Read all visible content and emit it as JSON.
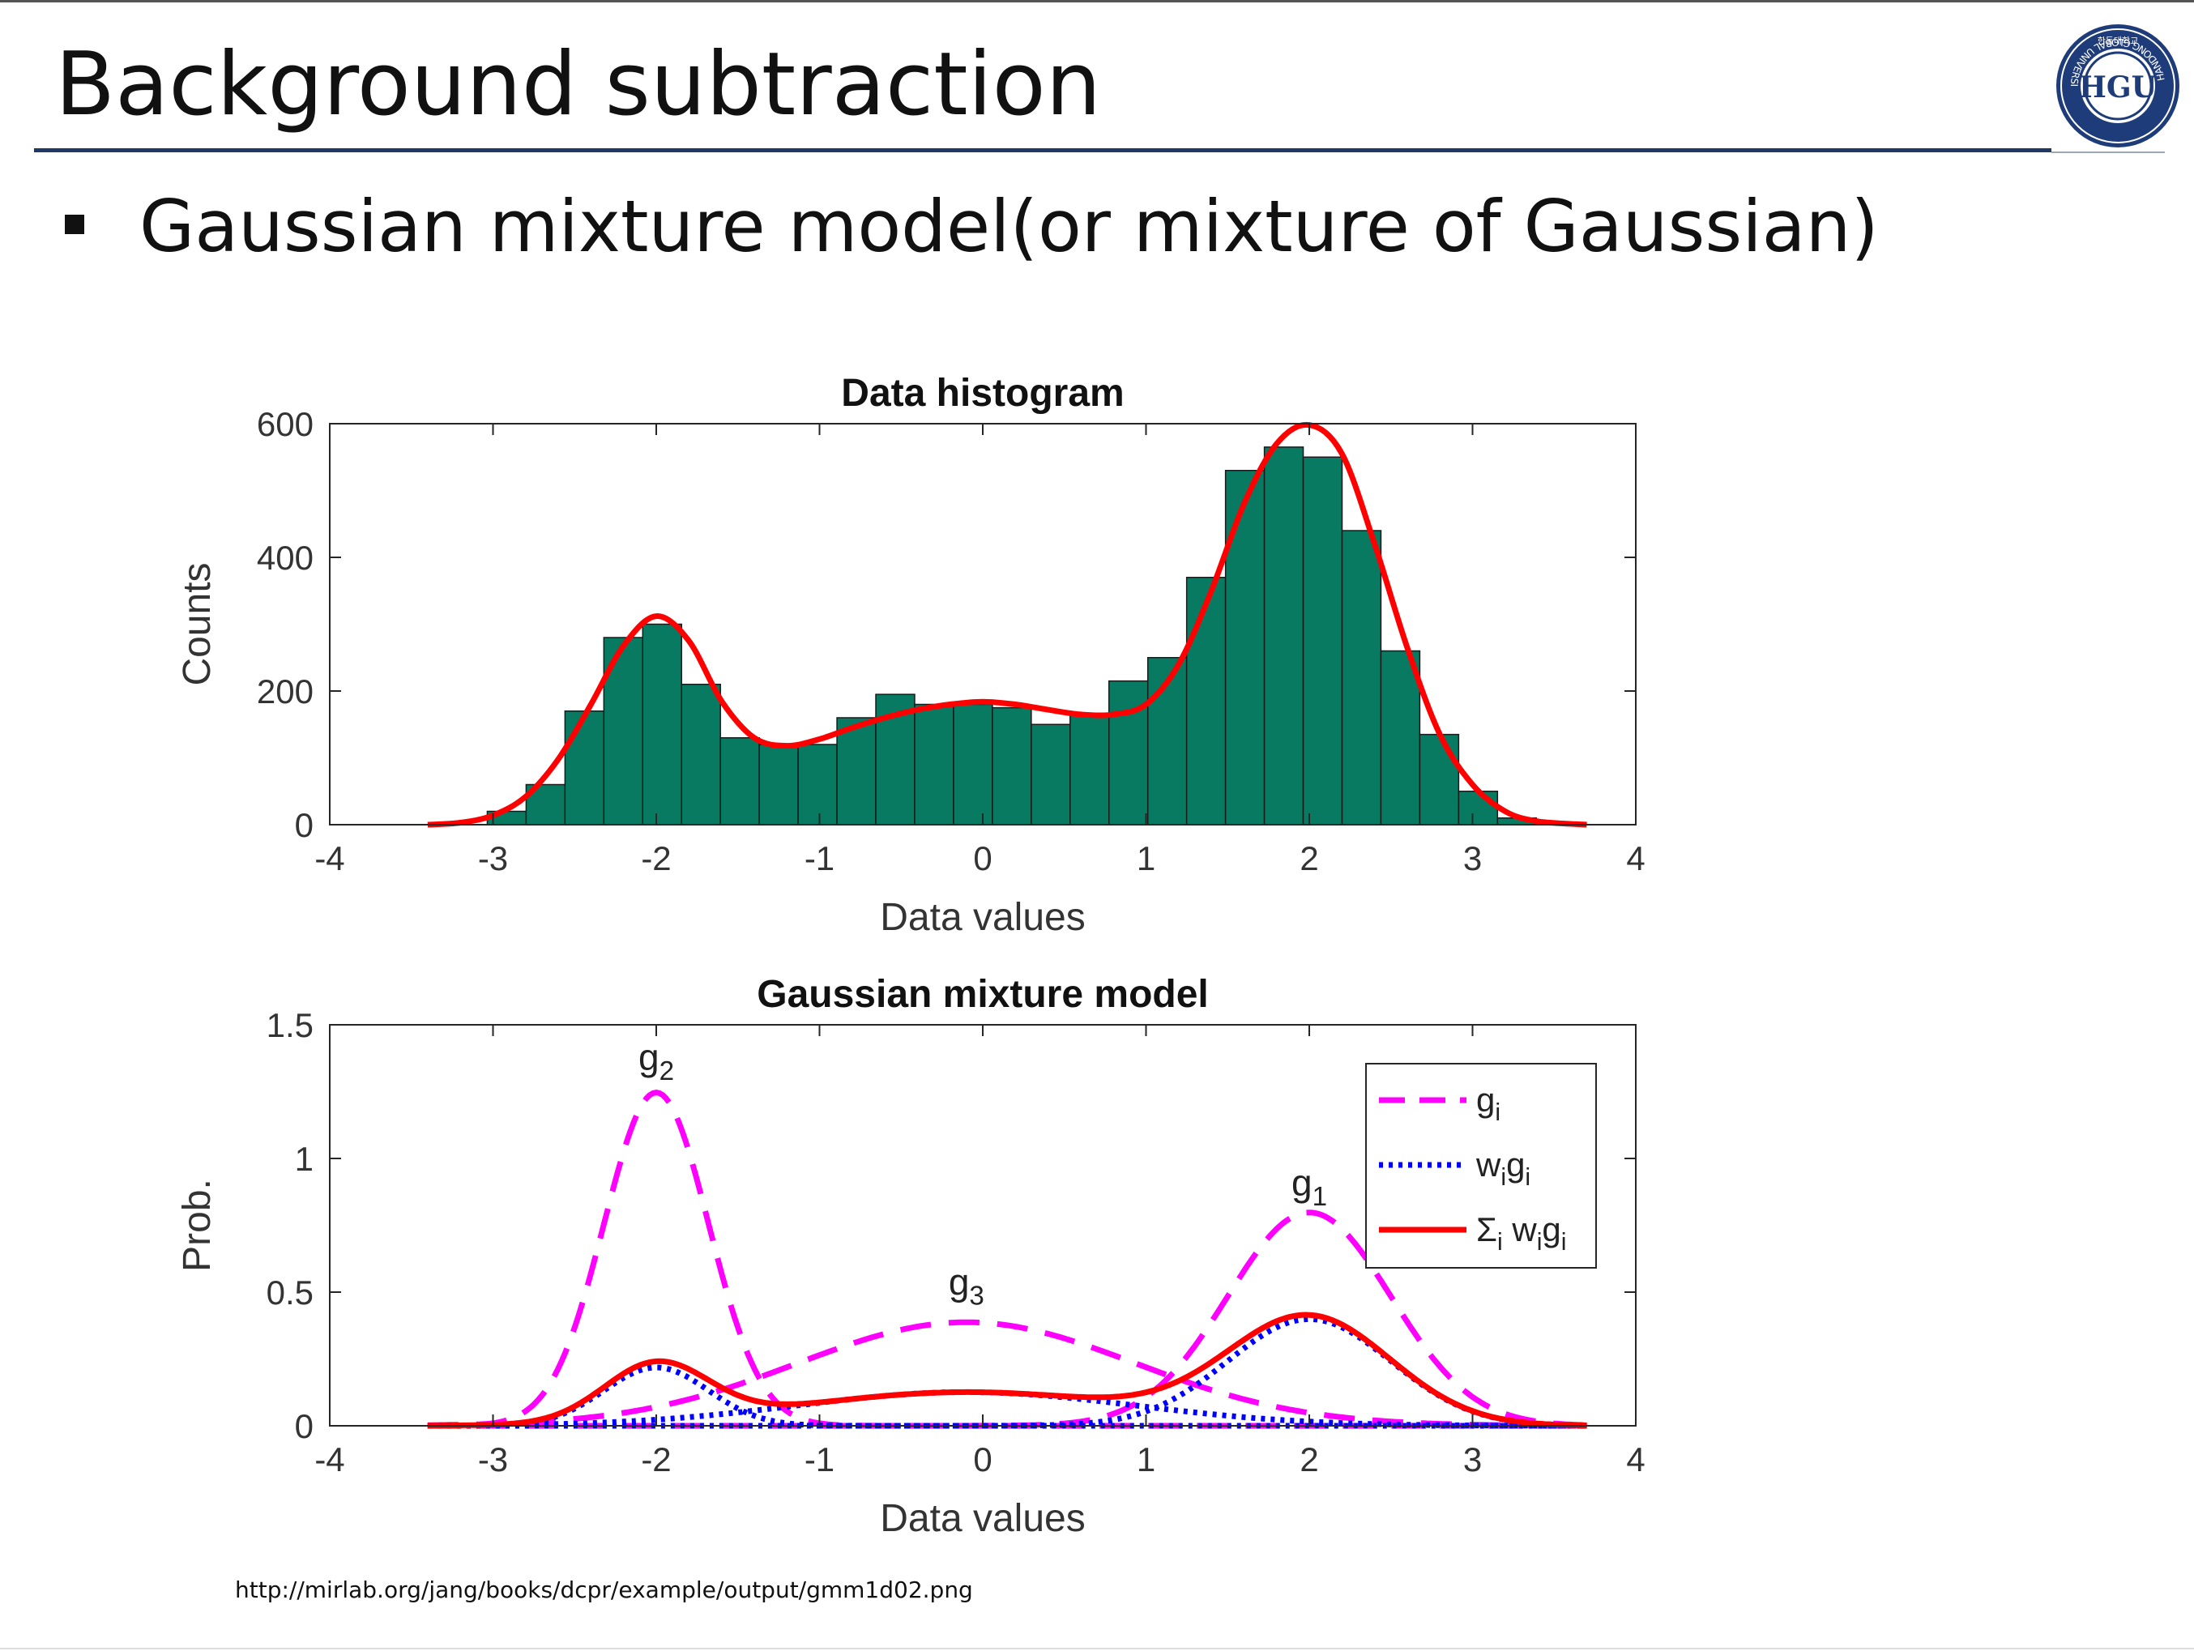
{
  "slide": {
    "title": "Background subtraction",
    "bullet": "Gaussian mixture model(or mixture of Gaussian)",
    "source_url": "http://mirlab.org/jang/books/dcpr/example/output/gmm1d02.png",
    "logo": {
      "icon": "university-seal-icon",
      "center_text": "HGU",
      "ring_text": "HANDONG GLOBAL UNIVERSITY",
      "top_text": "한동대학교"
    }
  },
  "colors": {
    "bar_fill": "#087a62",
    "fit_line": "#ff0000",
    "g_i": "#ff00ff",
    "w_i_g_i": "#0000ff",
    "title_rule": "#1f3864"
  },
  "chart_data": [
    {
      "type": "bar",
      "title": "Data histogram",
      "xlabel": "Data values",
      "ylabel": "Counts",
      "xlim": [
        -4,
        4
      ],
      "ylim": [
        0,
        600
      ],
      "xticks": [
        "-4",
        "-3",
        "-2",
        "-1",
        "0",
        "1",
        "2",
        "3",
        "4"
      ],
      "yticks": [
        "0",
        "200",
        "400",
        "600"
      ],
      "grid": false,
      "bin_edges": [
        -3.035,
        -2.797,
        -2.559,
        -2.321,
        -2.083,
        -1.845,
        -1.607,
        -1.369,
        -1.131,
        -0.893,
        -0.655,
        -0.417,
        -0.179,
        0.059,
        0.297,
        0.535,
        0.773,
        1.011,
        1.249,
        1.487,
        1.725,
        1.963,
        2.201,
        2.439,
        2.677,
        2.915,
        3.153,
        3.391
      ],
      "values": [
        20,
        60,
        170,
        280,
        300,
        210,
        130,
        120,
        120,
        160,
        195,
        180,
        180,
        175,
        150,
        165,
        215,
        250,
        370,
        530,
        565,
        550,
        440,
        260,
        135,
        50,
        10
      ],
      "series": [
        {
          "name": "fit",
          "x": [
            -3.4,
            -3.2,
            -3.0,
            -2.8,
            -2.6,
            -2.4,
            -2.2,
            -2.0,
            -1.8,
            -1.6,
            -1.4,
            -1.2,
            -1.0,
            -0.8,
            -0.6,
            -0.4,
            -0.2,
            0.0,
            0.2,
            0.4,
            0.6,
            0.8,
            1.0,
            1.2,
            1.4,
            1.6,
            1.8,
            2.0,
            2.2,
            2.4,
            2.6,
            2.8,
            3.0,
            3.2,
            3.4,
            3.7
          ],
          "y": [
            0,
            3,
            14,
            42,
            98,
            180,
            268,
            312,
            275,
            185,
            130,
            118,
            128,
            145,
            160,
            172,
            180,
            184,
            180,
            172,
            165,
            165,
            180,
            240,
            350,
            480,
            570,
            598,
            555,
            420,
            265,
            135,
            60,
            20,
            5,
            0
          ]
        }
      ]
    },
    {
      "type": "line",
      "title": "Gaussian mixture model",
      "xlabel": "Data values",
      "ylabel": "Prob.",
      "xlim": [
        -4,
        4
      ],
      "ylim": [
        0,
        1.5
      ],
      "xticks": [
        "-4",
        "-3",
        "-2",
        "-1",
        "0",
        "1",
        "2",
        "3",
        "4"
      ],
      "yticks": [
        "0",
        "0.5",
        "1",
        "1.5"
      ],
      "grid": false,
      "legend": {
        "placement": "top-right",
        "entries": [
          {
            "base": "g",
            "sub": "i",
            "style": "dashed",
            "color": "#ff00ff"
          },
          {
            "base": "w",
            "sub": "i",
            "base2": "g",
            "sub2": "i",
            "style": "dotted",
            "color": "#0000ff"
          },
          {
            "base": "Σ",
            "sub": "i",
            "base2": " w",
            "sub2": "i",
            "base3": "g",
            "sub3": "i",
            "style": "solid",
            "color": "#ff0000"
          }
        ]
      },
      "annotations": [
        {
          "base": "g",
          "sub": "2",
          "x": -2.0,
          "y": 1.33
        },
        {
          "base": "g",
          "sub": "1",
          "x": 2.0,
          "y": 0.86
        },
        {
          "base": "g",
          "sub": "3",
          "x": -0.1,
          "y": 0.49
        }
      ],
      "components": [
        {
          "label": "g1",
          "mu": 2.0,
          "sigma": 0.5,
          "weight": 0.5
        },
        {
          "label": "g2",
          "mu": -2.0,
          "sigma": 0.32,
          "weight": 0.175
        },
        {
          "label": "g3",
          "mu": -0.1,
          "sigma": 1.03,
          "weight": 0.325
        }
      ],
      "x_range": [
        -3.4,
        3.7
      ]
    }
  ]
}
